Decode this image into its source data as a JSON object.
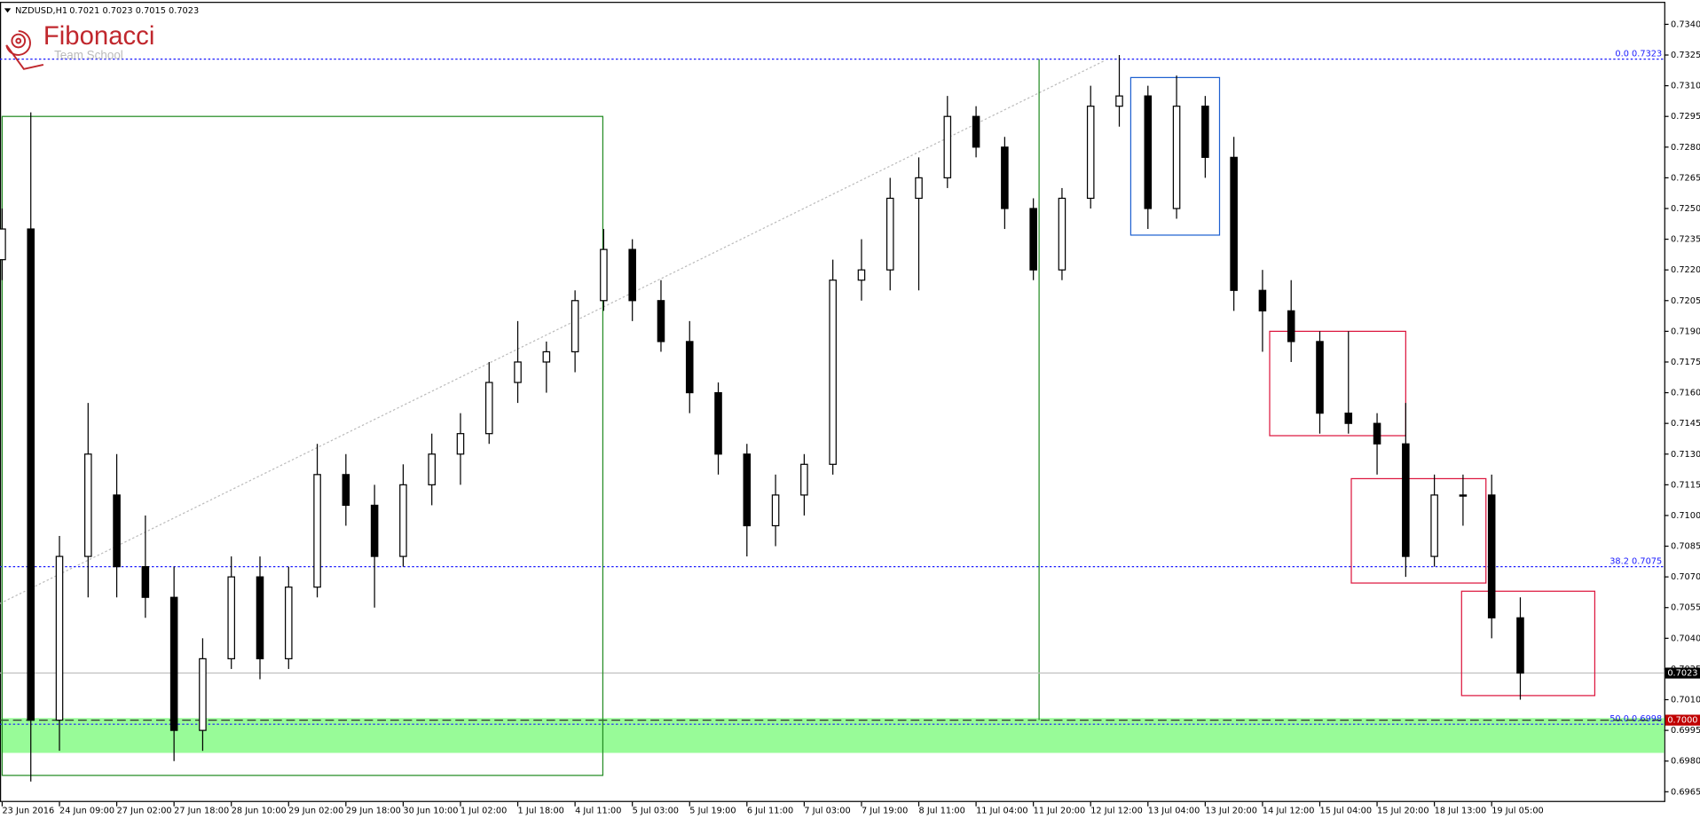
{
  "chart_data": {
    "type": "candlestick",
    "title": "NZDUSD,H1",
    "subtitle": "0.7021 0.7023 0.7015 0.7023",
    "brand": "Fibonacci",
    "brand_sub": "Team School",
    "categories": [
      "23 Jun 2016",
      null,
      "24 Jun 09:00",
      null,
      "27 Jun 02:00",
      null,
      "27 Jun 18:00",
      null,
      "28 Jun 10:00",
      null,
      "29 Jun 02:00",
      null,
      "29 Jun 18:00",
      null,
      "30 Jun 10:00",
      null,
      "1 Jul 02:00",
      null,
      "1 Jul 18:00",
      null,
      "4 Jul 11:00",
      null,
      "5 Jul 03:00",
      null,
      "5 Jul 19:00",
      null,
      "6 Jul 11:00",
      null,
      "7 Jul 03:00",
      null,
      "7 Jul 19:00",
      null,
      "8 Jul 11:00",
      null,
      "11 Jul 04:00",
      null,
      "11 Jul 20:00",
      null,
      "12 Jul 12:00",
      null,
      "13 Jul 04:00",
      null,
      "13 Jul 20:00",
      null,
      "14 Jul 12:00",
      null,
      "15 Jul 04:00",
      null,
      "15 Jul 20:00",
      null,
      "18 Jul 13:00",
      null,
      "19 Jul 05:00",
      null
    ],
    "open": [
      0.7225,
      0.724,
      0.7,
      0.708,
      0.711,
      0.7075,
      0.706,
      0.6995,
      0.703,
      0.707,
      0.703,
      0.7065,
      0.712,
      0.7105,
      0.708,
      0.7115,
      0.713,
      0.714,
      0.7165,
      0.7175,
      0.718,
      0.7205,
      0.723,
      0.7205,
      0.7185,
      0.716,
      0.713,
      0.7095,
      0.711,
      0.7125,
      0.7215,
      0.722,
      0.7255,
      0.7265,
      0.7295,
      0.728,
      0.725,
      0.722,
      0.7255,
      0.73,
      0.7305,
      0.725,
      0.73,
      0.7275,
      0.721,
      0.72,
      0.7185,
      0.715,
      0.7145,
      0.7135,
      0.708,
      0.711,
      0.711,
      0.705
    ],
    "high": [
      0.725,
      0.7297,
      0.709,
      0.7155,
      0.713,
      0.71,
      0.7075,
      0.704,
      0.708,
      0.708,
      0.7075,
      0.7135,
      0.713,
      0.7115,
      0.7125,
      0.714,
      0.715,
      0.7175,
      0.7195,
      0.7185,
      0.721,
      0.724,
      0.7235,
      0.7215,
      0.7195,
      0.7165,
      0.7135,
      0.712,
      0.713,
      0.7225,
      0.7235,
      0.7265,
      0.7275,
      0.7305,
      0.73,
      0.7285,
      0.7255,
      0.726,
      0.731,
      0.7325,
      0.731,
      0.7315,
      0.7305,
      0.7285,
      0.722,
      0.7215,
      0.719,
      0.719,
      0.715,
      0.7155,
      0.712,
      0.712,
      0.712,
      0.706
    ],
    "low": [
      0.7215,
      0.697,
      0.6985,
      0.706,
      0.706,
      0.705,
      0.698,
      0.6985,
      0.7025,
      0.702,
      0.7025,
      0.706,
      0.7095,
      0.7055,
      0.7075,
      0.7105,
      0.7115,
      0.7135,
      0.7155,
      0.716,
      0.717,
      0.72,
      0.7195,
      0.718,
      0.715,
      0.712,
      0.708,
      0.7085,
      0.71,
      0.712,
      0.7205,
      0.721,
      0.721,
      0.726,
      0.7275,
      0.724,
      0.7215,
      0.7215,
      0.725,
      0.729,
      0.724,
      0.7245,
      0.7265,
      0.72,
      0.718,
      0.7175,
      0.714,
      0.714,
      0.712,
      0.707,
      0.7075,
      0.7095,
      0.704,
      0.701
    ],
    "close": [
      0.724,
      0.7,
      0.708,
      0.713,
      0.7075,
      0.706,
      0.6995,
      0.703,
      0.707,
      0.703,
      0.7065,
      0.712,
      0.7105,
      0.708,
      0.7115,
      0.713,
      0.714,
      0.7165,
      0.7175,
      0.718,
      0.7205,
      0.723,
      0.7205,
      0.7185,
      0.716,
      0.713,
      0.7095,
      0.711,
      0.7125,
      0.7215,
      0.722,
      0.7255,
      0.7265,
      0.7295,
      0.728,
      0.725,
      0.722,
      0.7255,
      0.73,
      0.7305,
      0.725,
      0.73,
      0.7275,
      0.721,
      0.72,
      0.7185,
      0.715,
      0.7145,
      0.7135,
      0.708,
      0.711,
      0.711,
      0.705,
      0.7023
    ],
    "ylim": [
      0.696,
      0.7351
    ],
    "yticks": [
      {
        "value": 0.734,
        "label": "0.7340"
      },
      0.7325,
      {
        "value": 0.731,
        "label": "0.7310"
      },
      0.7295,
      {
        "value": 0.728,
        "label": "0.7280"
      },
      0.7265,
      {
        "value": 0.725,
        "label": "0.7250"
      },
      0.7235,
      {
        "value": 0.722,
        "label": "0.7220"
      },
      0.7205,
      {
        "value": 0.719,
        "label": "0.7190"
      },
      0.7175,
      {
        "value": 0.716,
        "label": "0.7160"
      },
      0.7145,
      {
        "value": 0.713,
        "label": "0.7130"
      },
      0.7115,
      {
        "value": 0.71,
        "label": "0.7100"
      },
      0.7085,
      {
        "value": 0.707,
        "label": "0.7070"
      },
      0.7055,
      {
        "value": 0.704,
        "label": "0.7040"
      },
      0.7025,
      {
        "value": 0.701,
        "label": "0.7010"
      },
      0.6995,
      {
        "value": 0.698,
        "label": "0.6980"
      },
      0.6965
    ],
    "current_price": 0.7023,
    "level": {
      "value": 0.7,
      "label": "0.7000"
    },
    "fib_levels": [
      {
        "value": 0.7323,
        "label": "0.0  0.7323"
      },
      {
        "value": 0.7075,
        "label": "38.2  0.7075"
      },
      {
        "value": 0.6998,
        "label": "50.0  0.6998"
      }
    ],
    "zone": {
      "color": "#98fb98",
      "y": [
        0.6984,
        0.7001
      ]
    },
    "trendline": {
      "x": [
        0,
        38.45
      ],
      "y": [
        0.7057,
        0.7322
      ]
    },
    "vline": {
      "x": 36.2,
      "color": "#228b22"
    },
    "rectangles": [
      {
        "color": "#228b22",
        "x": [
          0,
          20.97
        ],
        "y": [
          0.6973,
          0.7295
        ]
      },
      {
        "color": "#1e60d0",
        "x": [
          39.4,
          42.5
        ],
        "y": [
          0.7237,
          0.7314
        ]
      },
      {
        "color": "#dc143c",
        "x": [
          44.25,
          49
        ],
        "y": [
          0.7139,
          0.719
        ]
      },
      {
        "color": "#dc143c",
        "x": [
          47.1,
          51.8
        ],
        "y": [
          0.7067,
          0.7118
        ]
      },
      {
        "color": "#dc143c",
        "x": [
          50.95,
          55.6
        ],
        "y": [
          0.7012,
          0.7063
        ]
      }
    ]
  }
}
